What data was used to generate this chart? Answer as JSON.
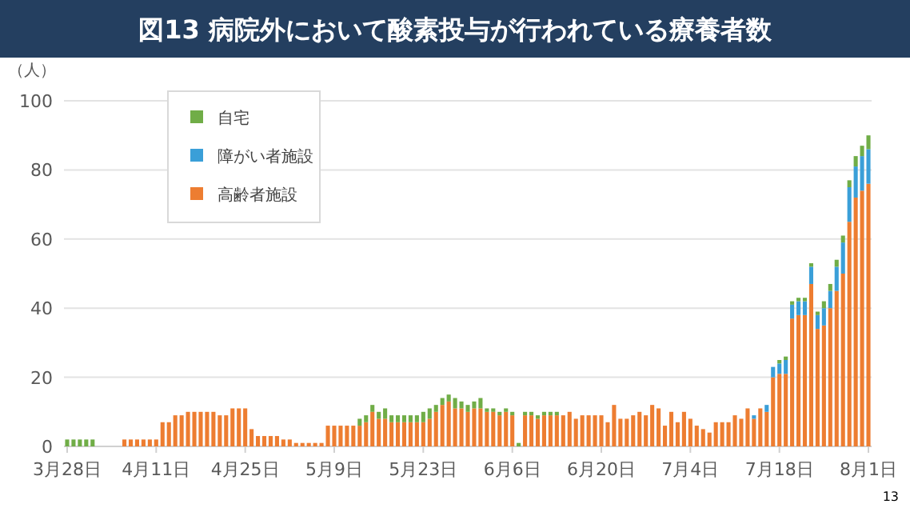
{
  "chart_data": {
    "type": "bar",
    "stacked": true,
    "title": "図13 病院外において酸素投与が行われている療養者数",
    "ylabel": "（人）",
    "annotations": [
      "13"
    ],
    "categories": [
      "3月28日",
      null,
      null,
      null,
      null,
      null,
      null,
      null,
      null,
      null,
      null,
      null,
      null,
      null,
      "4月11日",
      null,
      null,
      null,
      null,
      null,
      null,
      null,
      null,
      null,
      null,
      null,
      null,
      null,
      "4月25日",
      null,
      null,
      null,
      null,
      null,
      null,
      null,
      null,
      null,
      null,
      null,
      null,
      null,
      "5月9日",
      null,
      null,
      null,
      null,
      null,
      null,
      null,
      null,
      null,
      null,
      null,
      null,
      null,
      "5月23日",
      null,
      null,
      null,
      null,
      null,
      null,
      null,
      null,
      null,
      null,
      null,
      null,
      null,
      "6月6日",
      null,
      null,
      null,
      null,
      null,
      null,
      null,
      null,
      null,
      null,
      null,
      null,
      null,
      "6月20日",
      null,
      null,
      null,
      null,
      null,
      null,
      null,
      null,
      null,
      null,
      null,
      null,
      null,
      "7月4日",
      null,
      null,
      null,
      null,
      null,
      null,
      null,
      null,
      null,
      null,
      null,
      null,
      null,
      "7月18日",
      null,
      null,
      null,
      null,
      null,
      null,
      null,
      null,
      null,
      null,
      null,
      null,
      null,
      "8月1日"
    ],
    "series": [
      {
        "name": "高齢者施設",
        "color": "#ed7d31",
        "values": [
          0,
          0,
          0,
          0,
          0,
          0,
          0,
          0,
          0,
          2,
          2,
          2,
          2,
          2,
          2,
          7,
          7,
          9,
          9,
          10,
          10,
          10,
          10,
          10,
          9,
          9,
          11,
          11,
          11,
          5,
          3,
          3,
          3,
          3,
          2,
          2,
          1,
          1,
          1,
          1,
          1,
          6,
          6,
          6,
          6,
          6,
          6,
          7,
          10,
          8,
          8,
          7,
          7,
          7,
          7,
          7,
          7,
          8,
          10,
          12,
          13,
          11,
          11,
          10,
          11,
          11,
          10,
          10,
          9,
          10,
          9,
          0,
          9,
          9,
          8,
          9,
          9,
          9,
          9,
          10,
          8,
          9,
          9,
          9,
          9,
          7,
          12,
          8,
          8,
          9,
          10,
          9,
          12,
          11,
          6,
          10,
          7,
          10,
          8,
          6,
          5,
          4,
          7,
          7,
          7,
          9,
          8,
          11,
          8,
          11,
          10,
          20,
          21,
          21,
          37,
          38,
          38,
          47,
          34,
          35,
          40,
          45,
          50,
          65,
          72,
          74,
          76
        ]
      },
      {
        "name": "障がい者施設",
        "color": "#3a9fd8",
        "values": [
          0,
          0,
          0,
          0,
          0,
          0,
          0,
          0,
          0,
          0,
          0,
          0,
          0,
          0,
          0,
          0,
          0,
          0,
          0,
          0,
          0,
          0,
          0,
          0,
          0,
          0,
          0,
          0,
          0,
          0,
          0,
          0,
          0,
          0,
          0,
          0,
          0,
          0,
          0,
          0,
          0,
          0,
          0,
          0,
          0,
          0,
          0,
          0,
          0,
          0,
          0,
          0,
          0,
          0,
          0,
          0,
          0,
          0,
          0,
          0,
          0,
          0,
          0,
          0,
          0,
          0,
          0,
          0,
          0,
          0,
          0,
          0,
          0,
          0,
          0,
          0,
          0,
          0,
          0,
          0,
          0,
          0,
          0,
          0,
          0,
          0,
          0,
          0,
          0,
          0,
          0,
          0,
          0,
          0,
          0,
          0,
          0,
          0,
          0,
          0,
          0,
          0,
          0,
          0,
          0,
          0,
          0,
          0,
          1,
          0,
          2,
          3,
          3,
          4,
          4,
          4,
          4,
          5,
          4,
          5,
          5,
          7,
          9,
          10,
          9,
          10,
          10
        ]
      },
      {
        "name": "自宅",
        "color": "#70ad47",
        "values": [
          2,
          2,
          2,
          2,
          2,
          0,
          0,
          0,
          0,
          0,
          0,
          0,
          0,
          0,
          0,
          0,
          0,
          0,
          0,
          0,
          0,
          0,
          0,
          0,
          0,
          0,
          0,
          0,
          0,
          0,
          0,
          0,
          0,
          0,
          0,
          0,
          0,
          0,
          0,
          0,
          0,
          0,
          0,
          0,
          0,
          0,
          2,
          2,
          2,
          2,
          3,
          2,
          2,
          2,
          2,
          2,
          3,
          3,
          2,
          2,
          2,
          3,
          2,
          2,
          2,
          3,
          1,
          1,
          1,
          1,
          1,
          1,
          1,
          1,
          1,
          1,
          1,
          1,
          0,
          0,
          0,
          0,
          0,
          0,
          0,
          0,
          0,
          0,
          0,
          0,
          0,
          0,
          0,
          0,
          0,
          0,
          0,
          0,
          0,
          0,
          0,
          0,
          0,
          0,
          0,
          0,
          0,
          0,
          0,
          0,
          0,
          0,
          1,
          1,
          1,
          1,
          1,
          1,
          1,
          2,
          2,
          2,
          2,
          2,
          3,
          3,
          4
        ]
      }
    ],
    "ylim": [
      0,
      100
    ],
    "yticks": [
      0,
      20,
      40,
      60,
      80,
      100
    ],
    "grid": "y",
    "legend": "top left"
  }
}
